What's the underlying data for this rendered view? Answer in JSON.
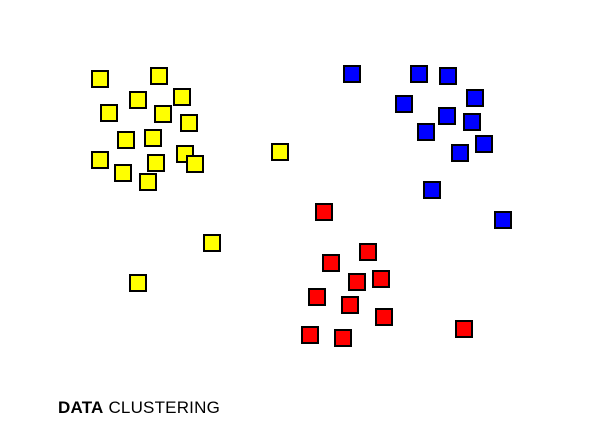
{
  "caption": {
    "bold_word": "DATA",
    "rest": "CLUSTERING"
  },
  "colors": {
    "yellow": "#ffff00",
    "blue": "#0000ff",
    "red": "#ff0000",
    "outline": "#000000",
    "background": "#ffffff"
  },
  "clusters": [
    {
      "color_key": "yellow",
      "points": [
        [
          100,
          79
        ],
        [
          159,
          76
        ],
        [
          138,
          100
        ],
        [
          182,
          97
        ],
        [
          109,
          113
        ],
        [
          163,
          114
        ],
        [
          189,
          123
        ],
        [
          126,
          140
        ],
        [
          153,
          138
        ],
        [
          100,
          160
        ],
        [
          156,
          163
        ],
        [
          185,
          154
        ],
        [
          195,
          164
        ],
        [
          123,
          173
        ],
        [
          148,
          182
        ],
        [
          280,
          152
        ],
        [
          212,
          243
        ],
        [
          138,
          283
        ]
      ]
    },
    {
      "color_key": "blue",
      "points": [
        [
          352,
          74
        ],
        [
          419,
          74
        ],
        [
          448,
          76
        ],
        [
          404,
          104
        ],
        [
          475,
          98
        ],
        [
          447,
          116
        ],
        [
          472,
          122
        ],
        [
          426,
          132
        ],
        [
          484,
          144
        ],
        [
          460,
          153
        ],
        [
          432,
          190
        ],
        [
          503,
          220
        ]
      ]
    },
    {
      "color_key": "red",
      "points": [
        [
          324,
          212
        ],
        [
          368,
          252
        ],
        [
          331,
          263
        ],
        [
          357,
          282
        ],
        [
          381,
          279
        ],
        [
          317,
          297
        ],
        [
          350,
          305
        ],
        [
          384,
          317
        ],
        [
          310,
          335
        ],
        [
          343,
          338
        ],
        [
          464,
          329
        ]
      ]
    }
  ]
}
